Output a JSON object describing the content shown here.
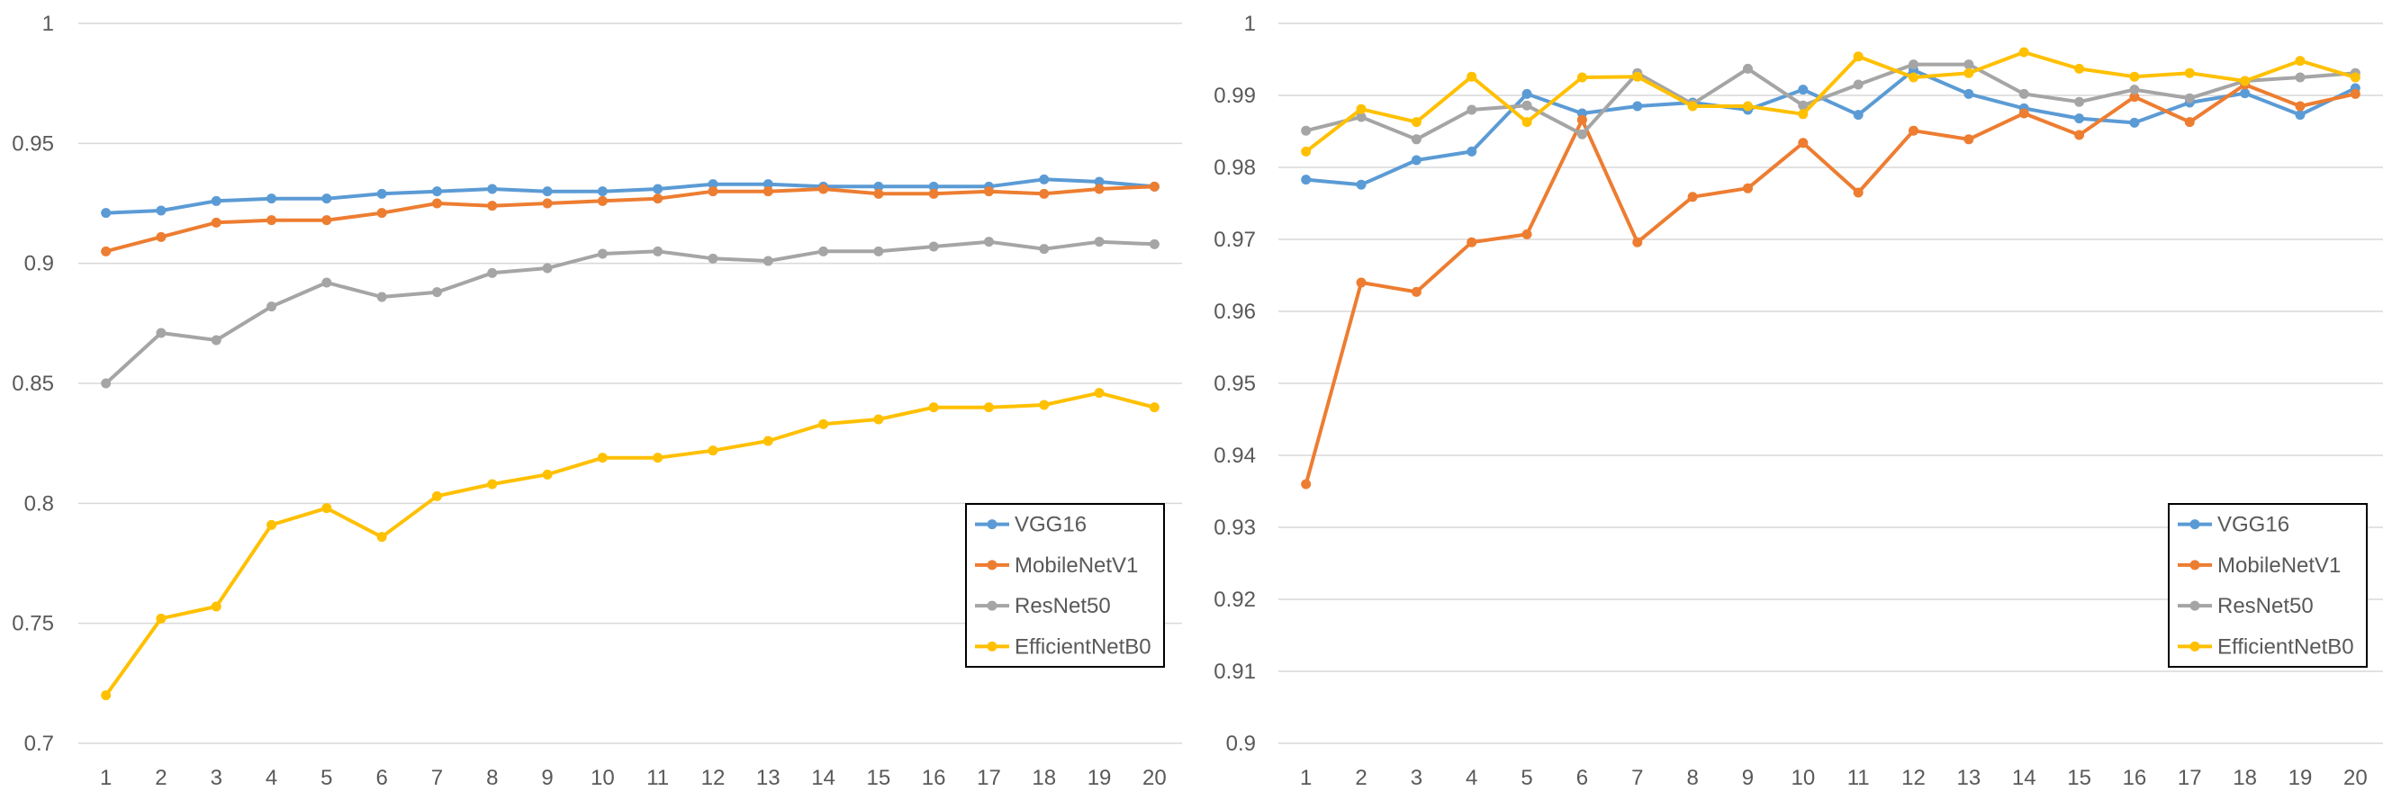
{
  "chart_data": [
    {
      "type": "line",
      "title": "",
      "xlabel": "",
      "ylabel": "",
      "ylim": [
        0.7,
        1.0
      ],
      "yticks": [
        0.7,
        0.75,
        0.8,
        0.85,
        0.9,
        0.95,
        1.0
      ],
      "ytick_labels": [
        "0.7",
        "0.75",
        "0.8",
        "0.85",
        "0.9",
        "0.95",
        "1"
      ],
      "categories": [
        "1",
        "2",
        "3",
        "4",
        "5",
        "6",
        "7",
        "8",
        "9",
        "10",
        "11",
        "12",
        "13",
        "14",
        "15",
        "16",
        "17",
        "18",
        "19",
        "20"
      ],
      "grid": "horizontal",
      "legend_position": "bottom-right",
      "series": [
        {
          "name": "VGG16",
          "color": "#5B9BD5",
          "values": [
            0.921,
            0.922,
            0.926,
            0.927,
            0.927,
            0.929,
            0.93,
            0.931,
            0.93,
            0.93,
            0.931,
            0.933,
            0.933,
            0.932,
            0.932,
            0.932,
            0.932,
            0.935,
            0.934,
            0.932
          ]
        },
        {
          "name": "MobileNetV1",
          "color": "#ED7D31",
          "values": [
            0.905,
            0.911,
            0.917,
            0.918,
            0.918,
            0.921,
            0.925,
            0.924,
            0.925,
            0.926,
            0.927,
            0.93,
            0.93,
            0.931,
            0.929,
            0.929,
            0.93,
            0.929,
            0.931,
            0.932
          ]
        },
        {
          "name": "ResNet50",
          "color": "#A5A5A5",
          "values": [
            0.85,
            0.871,
            0.868,
            0.882,
            0.892,
            0.886,
            0.888,
            0.896,
            0.898,
            0.904,
            0.905,
            0.902,
            0.901,
            0.905,
            0.905,
            0.907,
            0.909,
            0.906,
            0.909,
            0.908
          ]
        },
        {
          "name": "EfficientNetB0",
          "color": "#FFC000",
          "values": [
            0.72,
            0.752,
            0.757,
            0.791,
            0.798,
            0.786,
            0.803,
            0.808,
            0.812,
            0.819,
            0.819,
            0.822,
            0.826,
            0.833,
            0.835,
            0.84,
            0.84,
            0.841,
            0.846,
            0.84
          ]
        }
      ]
    },
    {
      "type": "line",
      "title": "",
      "xlabel": "",
      "ylabel": "",
      "ylim": [
        0.9,
        1.0
      ],
      "yticks": [
        0.9,
        0.91,
        0.92,
        0.93,
        0.94,
        0.95,
        0.96,
        0.97,
        0.98,
        0.99,
        1.0
      ],
      "ytick_labels": [
        "0.9",
        "0.91",
        "0.92",
        "0.93",
        "0.94",
        "0.95",
        "0.96",
        "0.97",
        "0.98",
        "0.99",
        "1"
      ],
      "categories": [
        "1",
        "2",
        "3",
        "4",
        "5",
        "6",
        "7",
        "8",
        "9",
        "10",
        "11",
        "12",
        "13",
        "14",
        "15",
        "16",
        "17",
        "18",
        "19",
        "20"
      ],
      "grid": "horizontal",
      "legend_position": "bottom-right",
      "series": [
        {
          "name": "VGG16",
          "color": "#5B9BD5",
          "values": [
            0.9783,
            0.9776,
            0.981,
            0.9822,
            0.9902,
            0.9875,
            0.9885,
            0.989,
            0.988,
            0.9908,
            0.9873,
            0.9935,
            0.9902,
            0.9882,
            0.9868,
            0.9862,
            0.989,
            0.9903,
            0.9873,
            0.991
          ]
        },
        {
          "name": "MobileNetV1",
          "color": "#ED7D31",
          "values": [
            0.936,
            0.964,
            0.9627,
            0.9696,
            0.9707,
            0.9866,
            0.9696,
            0.9759,
            0.9771,
            0.9834,
            0.9765,
            0.9851,
            0.9839,
            0.9875,
            0.9845,
            0.9898,
            0.9863,
            0.9915,
            0.9885,
            0.9902
          ]
        },
        {
          "name": "ResNet50",
          "color": "#A5A5A5",
          "values": [
            0.9851,
            0.987,
            0.9839,
            0.988,
            0.9886,
            0.9846,
            0.9931,
            0.9888,
            0.9937,
            0.9886,
            0.9915,
            0.9943,
            0.9943,
            0.9902,
            0.9891,
            0.9908,
            0.9896,
            0.992,
            0.9925,
            0.9931
          ]
        },
        {
          "name": "EfficientNetB0",
          "color": "#FFC000",
          "values": [
            0.9822,
            0.9881,
            0.9863,
            0.9926,
            0.9863,
            0.9925,
            0.9926,
            0.9885,
            0.9885,
            0.9874,
            0.9954,
            0.9925,
            0.9931,
            0.996,
            0.9937,
            0.9926,
            0.9931,
            0.992,
            0.9948,
            0.9925
          ]
        }
      ]
    }
  ]
}
